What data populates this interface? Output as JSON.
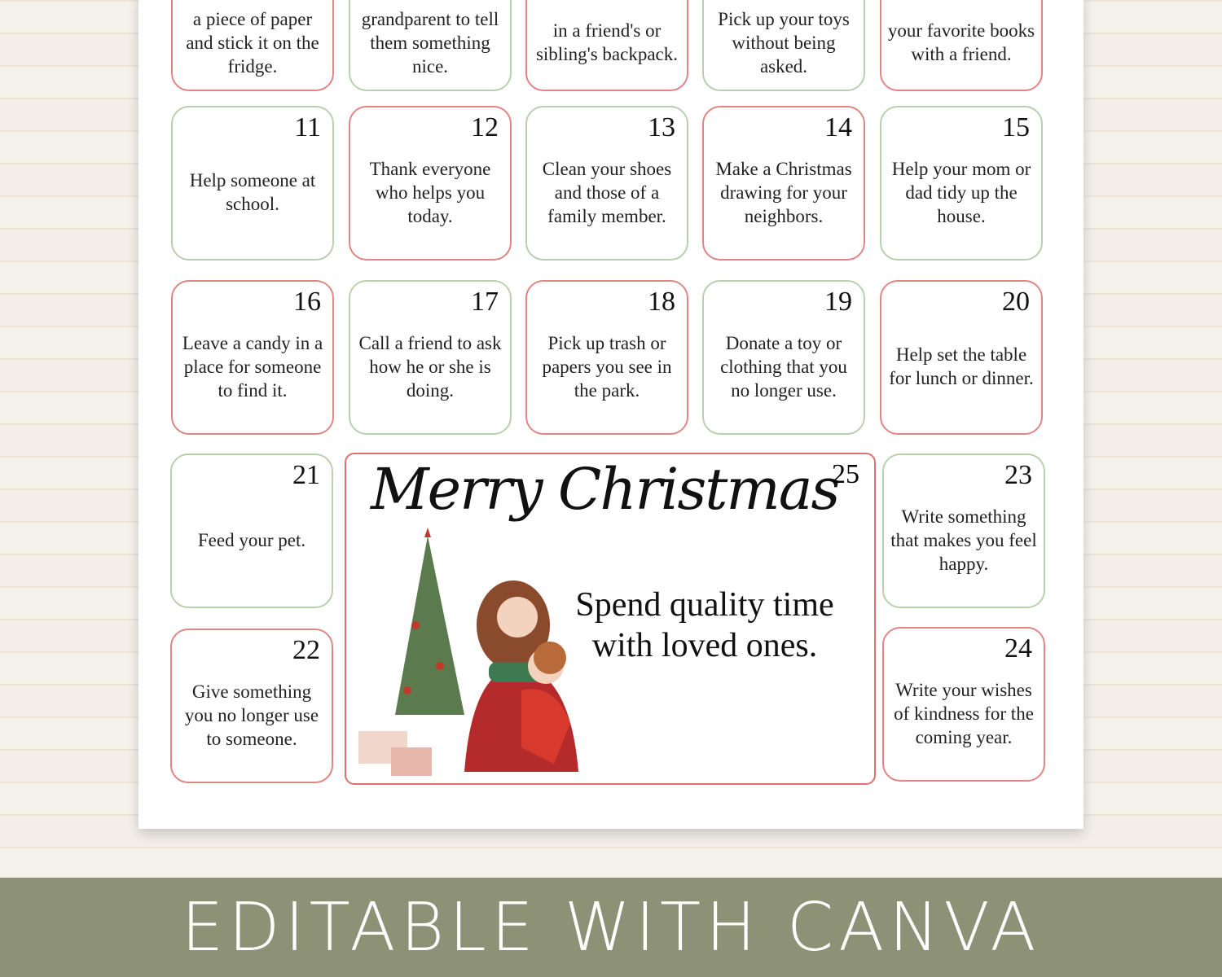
{
  "cells": [
    {
      "day": "",
      "text": "a piece of paper and stick it on the fridge.",
      "border": "red"
    },
    {
      "day": "",
      "text": "grandparent to tell them something nice.",
      "border": "green"
    },
    {
      "day": "",
      "text": "in a friend's or sibling's backpack.",
      "border": "red"
    },
    {
      "day": "",
      "text": "Pick up your toys without being asked.",
      "border": "green"
    },
    {
      "day": "",
      "text": "your favorite books with a friend.",
      "border": "red"
    },
    {
      "day": "11",
      "text": "Help someone at school.",
      "border": "green"
    },
    {
      "day": "12",
      "text": "Thank everyone who helps you today.",
      "border": "red"
    },
    {
      "day": "13",
      "text": "Clean your shoes and those of a family member.",
      "border": "green"
    },
    {
      "day": "14",
      "text": "Make a Christmas drawing for your neighbors.",
      "border": "red"
    },
    {
      "day": "15",
      "text": "Help your mom or dad tidy up the house.",
      "border": "green"
    },
    {
      "day": "16",
      "text": "Leave a candy in a place for someone to find it.",
      "border": "red"
    },
    {
      "day": "17",
      "text": "Call a friend to ask how he or she is doing.",
      "border": "green"
    },
    {
      "day": "18",
      "text": "Pick up trash or papers you see in the park.",
      "border": "red"
    },
    {
      "day": "19",
      "text": "Donate a toy or clothing that you no longer use.",
      "border": "green"
    },
    {
      "day": "20",
      "text": "Help set the table for lunch or dinner.",
      "border": "red"
    },
    {
      "day": "21",
      "text": "Feed your pet.",
      "border": "green"
    },
    {
      "day": "22",
      "text": "Give something you no longer use to someone.",
      "border": "red"
    },
    {
      "day": "23",
      "text": "Write something that makes you feel happy.",
      "border": "green"
    },
    {
      "day": "24",
      "text": "Write your wishes of kindness for the coming year.",
      "border": "red"
    }
  ],
  "christmas": {
    "title": "Merry Christmas",
    "day": "25",
    "text": "Spend quality time with loved ones."
  },
  "banner": "EDITABLE WITH CANVA",
  "colors": {
    "red": "#e08585",
    "green": "#b9d0ad",
    "banner": "#8d9276"
  }
}
